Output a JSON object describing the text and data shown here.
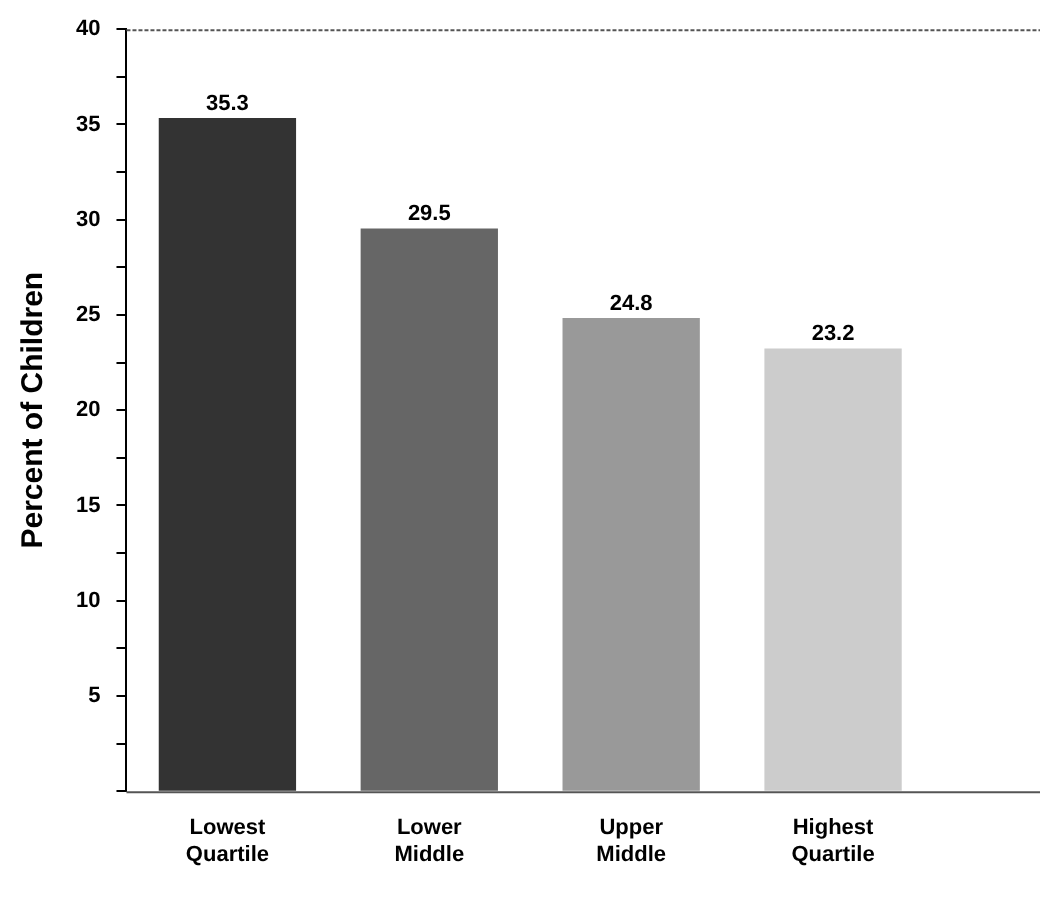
{
  "chart_data": {
    "type": "bar",
    "ylabel": "Percent of Children",
    "categories": [
      "Lowest Quartile",
      "Lower Middle",
      "Upper Middle",
      "Highest Quartile"
    ],
    "values": [
      35.3,
      29.5,
      24.8,
      23.2
    ],
    "colors": [
      "#333333",
      "#666666",
      "#999999",
      "#cccccc"
    ],
    "ylim": [
      0,
      40
    ],
    "yticks": [
      {
        "value": 0,
        "label": null
      },
      {
        "value": 2.5,
        "label": null
      },
      5,
      {
        "value": 7.5,
        "label": null
      },
      10,
      {
        "value": 12.5,
        "label": null
      },
      15,
      {
        "value": 17.5,
        "label": null
      },
      20,
      {
        "value": 22.5,
        "label": null
      },
      25,
      {
        "value": 27.5,
        "label": null
      },
      30,
      {
        "value": 32.5,
        "label": null
      },
      35,
      {
        "value": 37.5,
        "label": null
      },
      40
    ],
    "data_labels": true,
    "grid": false,
    "legend": false
  }
}
